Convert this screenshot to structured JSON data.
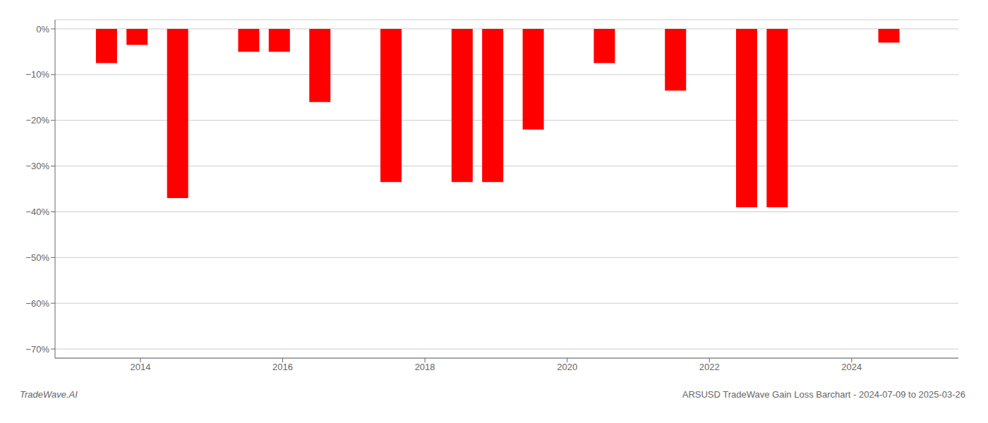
{
  "chart_data": {
    "type": "bar",
    "x": [
      2013.52,
      2013.95,
      2014.52,
      2015.52,
      2015.95,
      2016.52,
      2017.52,
      2018.52,
      2018.95,
      2019.52,
      2020.52,
      2021.52,
      2022.52,
      2022.95,
      2024.52
    ],
    "values": [
      -7.5,
      -3.5,
      -37.0,
      -5.0,
      -5.0,
      -16.0,
      -33.5,
      -33.5,
      -33.5,
      -22.0,
      -7.5,
      -13.5,
      -39.0,
      -39.0,
      -3.0
    ],
    "color": "#ff0000",
    "xlim": [
      2012.8,
      2025.5
    ],
    "xticks": [
      2014,
      2016,
      2018,
      2020,
      2022,
      2024
    ],
    "ylim": [
      -72,
      2
    ],
    "yticks": [
      {
        "value": 0,
        "label": "0%"
      },
      {
        "value": -10,
        "label": "−10%"
      },
      {
        "value": -20,
        "label": "−20%"
      },
      {
        "value": -30,
        "label": "−30%"
      },
      {
        "value": -40,
        "label": "−40%"
      },
      {
        "value": -50,
        "label": "−50%"
      },
      {
        "value": -60,
        "label": "−60%"
      },
      {
        "value": -70,
        "label": "−70%"
      }
    ],
    "grid": true,
    "annotations": [
      "TradeWave.AI",
      "ARSUSD TradeWave Gain Loss Barchart - 2024-07-09 to 2025-03-26"
    ]
  }
}
